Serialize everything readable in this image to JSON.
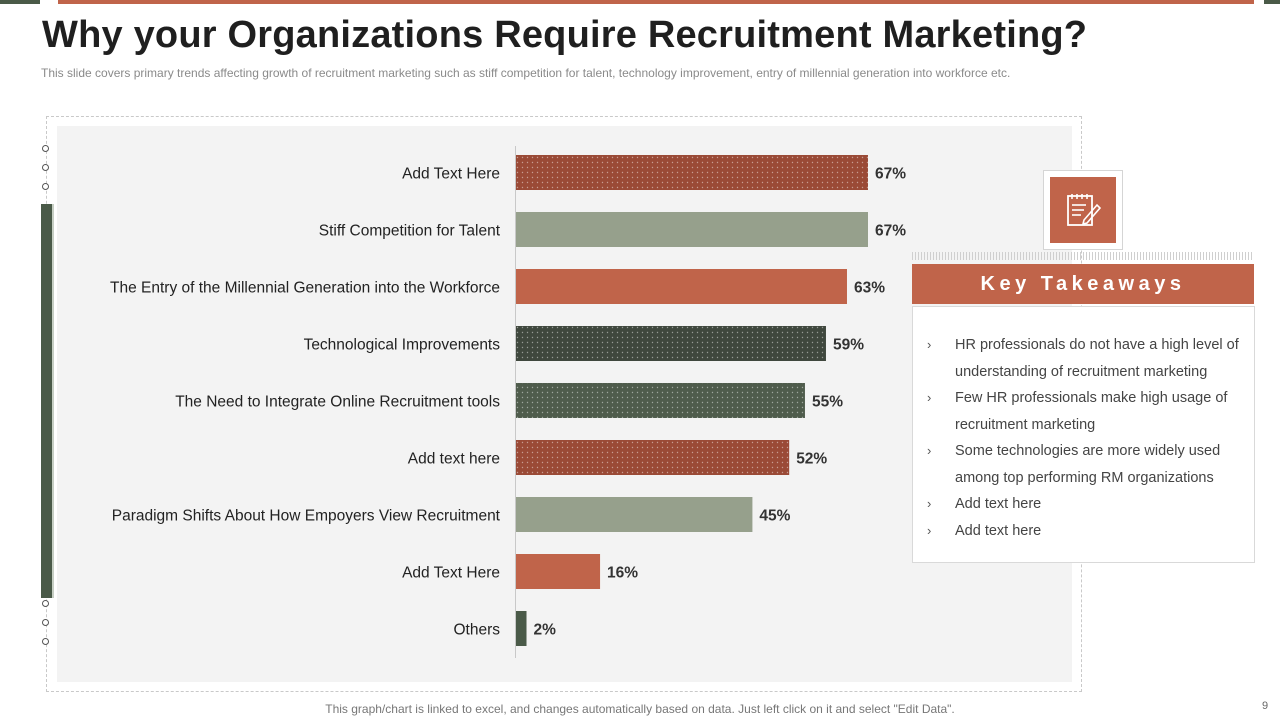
{
  "title": "Why your Organizations Require Recruitment Marketing?",
  "subtitle": "This slide covers  primary trends affecting  growth of recruitment  marketing  such as stiff competition for talent, technology improvement,  entry of millennial generation into workforce  etc.",
  "colors": {
    "accent": "#c0644a",
    "dark_green": "#4a5a48",
    "sage": "#96a08c",
    "brick": "#9a4a36",
    "charcoal": "#3f473d"
  },
  "chart_data": {
    "type": "bar",
    "orientation": "horizontal",
    "title": "",
    "xlabel": "",
    "ylabel": "",
    "xlim": [
      0,
      100
    ],
    "value_suffix": "%",
    "categories": [
      "Add Text Here",
      "Stiff Competition for Talent",
      "The Entry of the Millennial Generation into the Workforce",
      "Technological Improvements",
      "The Need to Integrate Online Recruitment tools",
      "Add text here",
      "Paradigm Shifts About How Empoyers View Recruitment",
      "Add Text Here",
      "Others"
    ],
    "values": [
      67,
      67,
      63,
      59,
      55,
      52,
      45,
      16,
      2
    ],
    "bar_colors": [
      "#9a4a36",
      "#96a08c",
      "#c0644a",
      "#3f473d",
      "#4f5c4c",
      "#9a4a36",
      "#96a08c",
      "#c0644a",
      "#4a5a48"
    ],
    "bar_patterns": [
      "dots",
      "solid",
      "solid",
      "dots",
      "dots",
      "dots",
      "solid",
      "solid",
      "solid"
    ]
  },
  "key_takeaways": {
    "icon": "edit-note-icon",
    "header": "Key Takeaways",
    "items": [
      "HR professionals do not have a high level of understanding of recruitment marketing",
      "Few HR professionals make high usage of recruitment marketing",
      "Some technologies are more widely used among top performing RM organizations",
      "Add text here",
      "Add text here"
    ]
  },
  "footer": "This graph/chart is linked to excel, and changes automatically based on data. Just left click on it and select \"Edit Data\".",
  "page_number": "9"
}
